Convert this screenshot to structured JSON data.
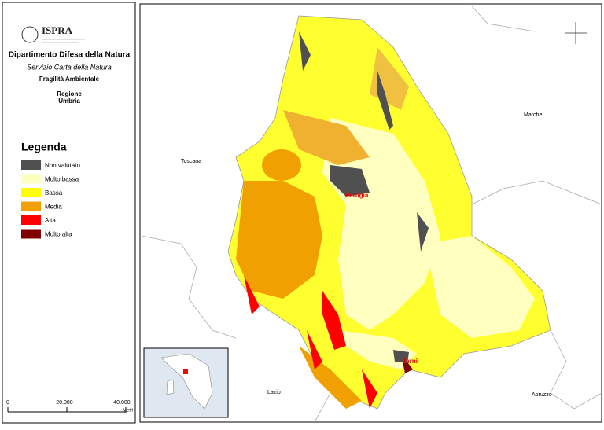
{
  "header": {
    "logo": "ISPRA",
    "department": "Dipartimento Difesa della Natura",
    "service": "Servizio Carta della Natura",
    "map_title": "Fragilità Ambientale",
    "region_label": "Regione",
    "region": "Umbria"
  },
  "legend": {
    "title": "Legenda",
    "items": [
      {
        "label": "Non valutato",
        "color": "#505050"
      },
      {
        "label": "Molto bassa",
        "color": "#ffffc0"
      },
      {
        "label": "Bassa",
        "color": "#ffff00"
      },
      {
        "label": "Media",
        "color": "#f0a000"
      },
      {
        "label": "Alta",
        "color": "#ff0000"
      },
      {
        "label": "Molto alta",
        "color": "#800000"
      }
    ]
  },
  "scale_bar": {
    "labels": [
      "0",
      "20.000",
      "40.000"
    ],
    "unit": "Metri"
  },
  "places": {
    "toscana": "Toscana",
    "marche": "Marche",
    "perugia": "Perugia",
    "terni": "Terni",
    "lazio": "Lazio",
    "abruzzo": "Abruzzo"
  }
}
